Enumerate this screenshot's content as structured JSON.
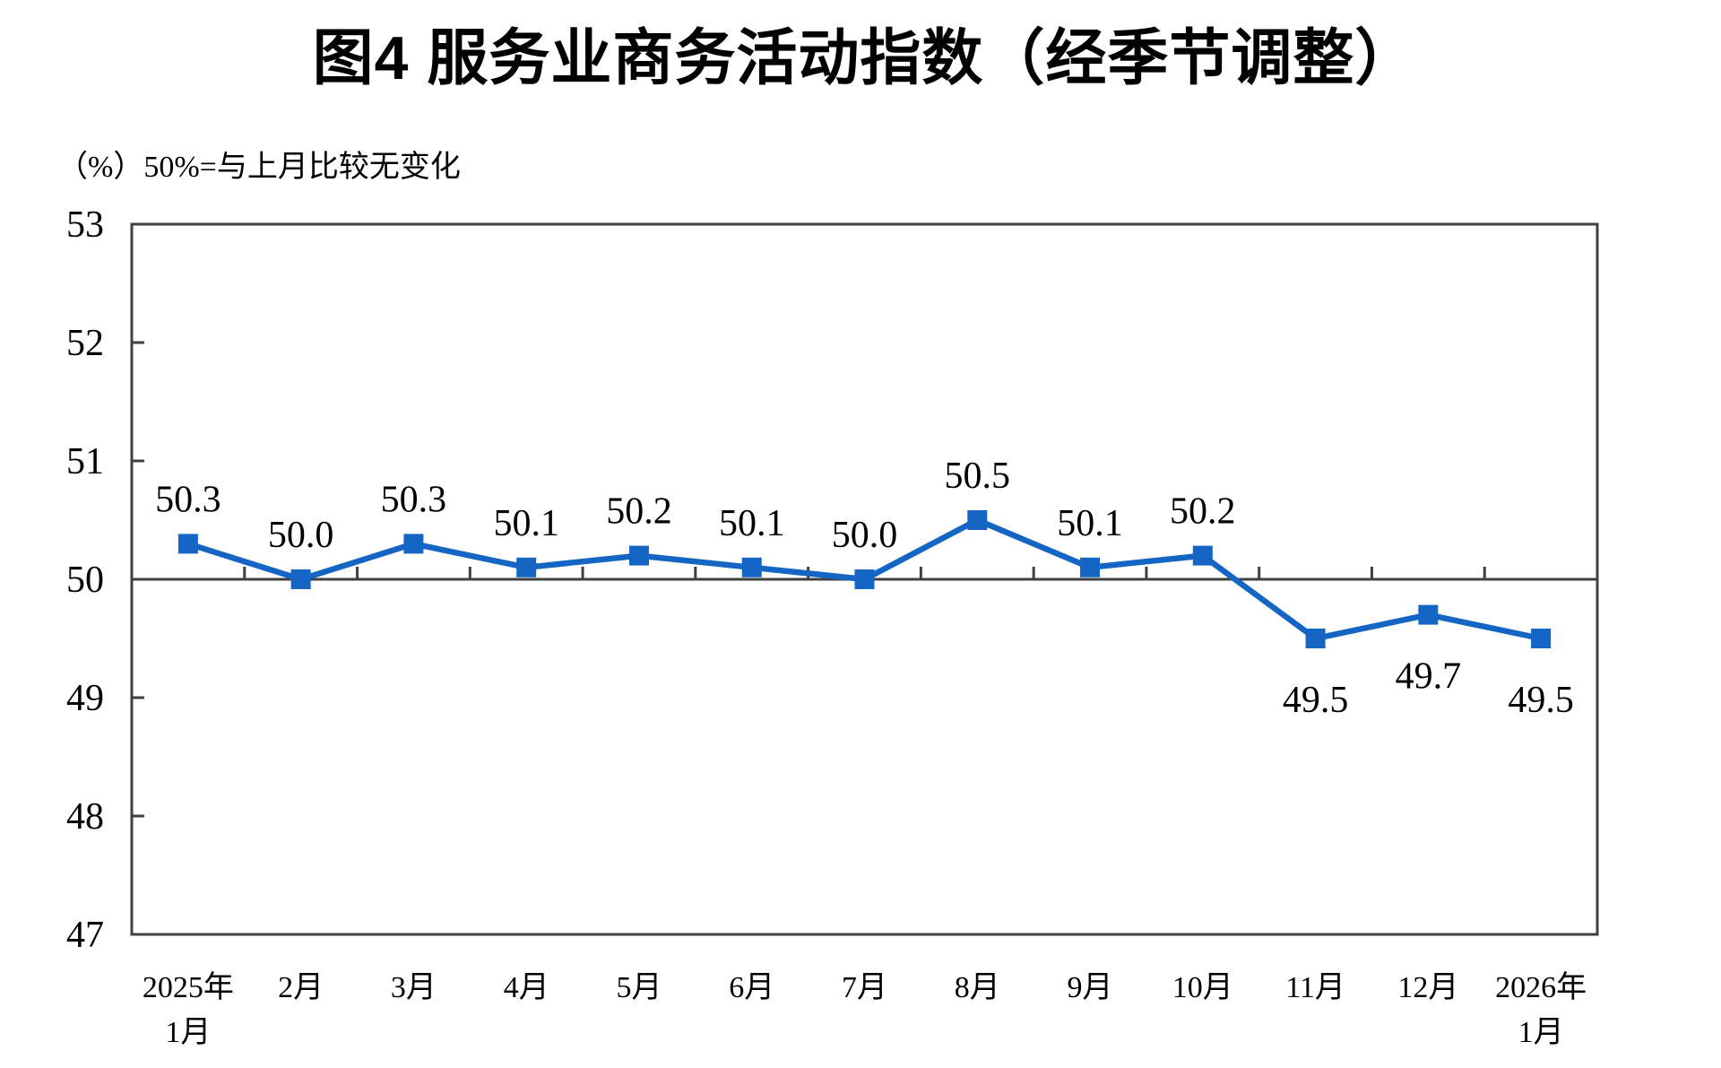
{
  "page": {
    "background": "#ffffff"
  },
  "chart_data": {
    "type": "line",
    "title": "图4  服务业商务活动指数（经季节调整）",
    "unit_note": "（%）50%=与上月比较无变化",
    "categories": [
      [
        "2025年",
        "1月"
      ],
      [
        "2月"
      ],
      [
        "3月"
      ],
      [
        "4月"
      ],
      [
        "5月"
      ],
      [
        "6月"
      ],
      [
        "7月"
      ],
      [
        "8月"
      ],
      [
        "9月"
      ],
      [
        "10月"
      ],
      [
        "11月"
      ],
      [
        "12月"
      ],
      [
        "2026年",
        "1月"
      ]
    ],
    "values": [
      50.3,
      50.0,
      50.3,
      50.1,
      50.2,
      50.1,
      50.0,
      50.5,
      50.1,
      50.2,
      49.5,
      49.7,
      49.5
    ],
    "data_labels": [
      "50.3",
      "50.0",
      "50.3",
      "50.1",
      "50.2",
      "50.1",
      "50.0",
      "50.5",
      "50.1",
      "50.2",
      "49.5",
      "49.7",
      "49.5"
    ],
    "label_positions": [
      "above",
      "above",
      "above",
      "above",
      "above",
      "above",
      "above",
      "above",
      "above",
      "above",
      "below",
      "below",
      "below"
    ],
    "ylim": [
      47,
      53
    ],
    "yticks": [
      47,
      48,
      49,
      50,
      51,
      52,
      53
    ],
    "reference_line": 50,
    "series_color": "#1566C4",
    "axis_color": "#404040",
    "grid": false,
    "legend": "none",
    "marker": "square"
  }
}
